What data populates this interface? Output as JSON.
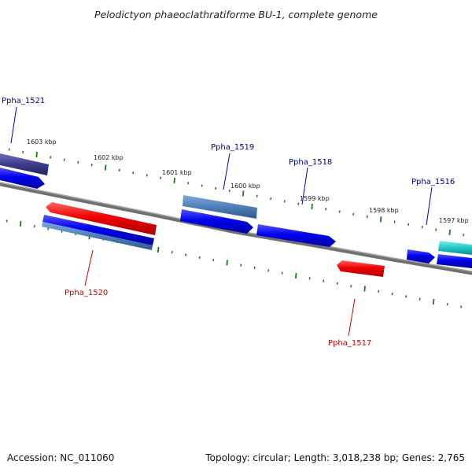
{
  "title": "Pelodictyon phaeoclathratiforme BU-1, complete genome",
  "footer": {
    "accession": "Accession: NC_011060",
    "summary": "Topology: circular; Length: 3,018,238 bp; Genes: 2,765"
  },
  "colors": {
    "backbone": "#808080",
    "tick": "#1a7a1a",
    "forward_label": "#00008b",
    "reverse_label": "#cc0000",
    "cds_blue": "#0000ee",
    "gene_red": "#ee0000",
    "gene_steel": "#4f7fb8",
    "gene_navy": "#3c3c8c",
    "gene_cyan": "#20c8c8"
  },
  "kbp_labels": [
    "1603 kbp",
    "1602 kbp",
    "1601 kbp",
    "1600 kbp",
    "1599 kbp",
    "1598 kbp",
    "1597 kbp"
  ],
  "gene_labels": [
    {
      "text": "Ppha_1521",
      "strand": "forward"
    },
    {
      "text": "Ppha_1519",
      "strand": "forward"
    },
    {
      "text": "Ppha_1518",
      "strand": "forward"
    },
    {
      "text": "Ppha_1516",
      "strand": "forward"
    },
    {
      "text": "Ppha_1520",
      "strand": "reverse"
    },
    {
      "text": "Ppha_1517",
      "strand": "reverse"
    }
  ]
}
